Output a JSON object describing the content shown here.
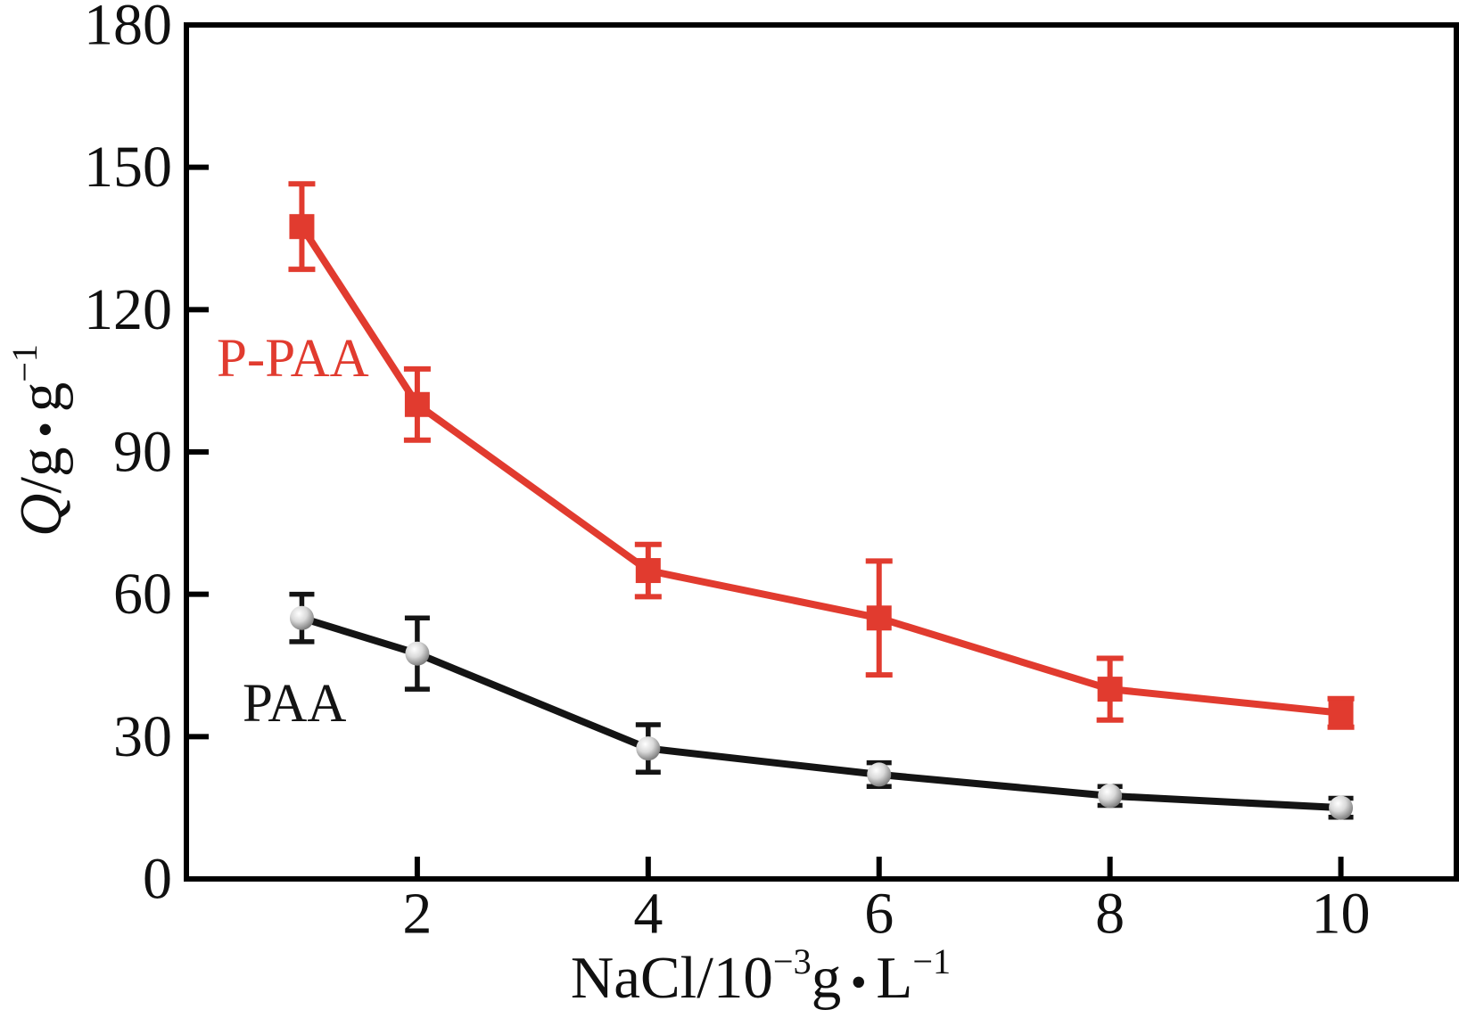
{
  "figure": {
    "background": "#ffffff"
  },
  "chart_data": {
    "type": "line",
    "x": [
      1,
      2,
      4,
      6,
      8,
      10
    ],
    "series": [
      {
        "name": "P-PAA",
        "color": "#e13b2f",
        "marker": "square",
        "values": [
          137.5,
          100,
          65,
          55,
          40,
          35
        ],
        "errors": [
          9,
          7.5,
          5.5,
          12,
          6.5,
          3
        ]
      },
      {
        "name": "PAA",
        "color": "#141414",
        "marker": "sphere",
        "values": [
          55,
          47.5,
          27.5,
          22,
          17.5,
          15
        ],
        "errors": [
          5,
          7.5,
          5,
          2.5,
          2,
          2
        ]
      }
    ],
    "x_ticks": [
      "2",
      "4",
      "6",
      "8",
      "10"
    ],
    "x_tick_values": [
      2,
      4,
      6,
      8,
      10
    ],
    "y_ticks": [
      "0",
      "30",
      "60",
      "90",
      "120",
      "150",
      "180"
    ],
    "y_tick_values": [
      0,
      30,
      60,
      90,
      120,
      150,
      180
    ],
    "xlim": [
      0,
      11
    ],
    "ylim": [
      0,
      180
    ],
    "grid": false,
    "legend_position": "inline-annotations",
    "xlabel_parts": [
      {
        "t": "NaCl/10"
      },
      {
        "t": "−3",
        "sup": true
      },
      {
        "t": "g"
      },
      {
        "t": " • ",
        "dot": true
      },
      {
        "t": "L"
      },
      {
        "t": "−1",
        "sup": true
      }
    ],
    "ylabel_parts": [
      {
        "t": "Q",
        "italic": true
      },
      {
        "t": "/g"
      },
      {
        "t": " • ",
        "dot": true
      },
      {
        "t": "g"
      },
      {
        "t": "−1",
        "sup": true
      }
    ]
  }
}
